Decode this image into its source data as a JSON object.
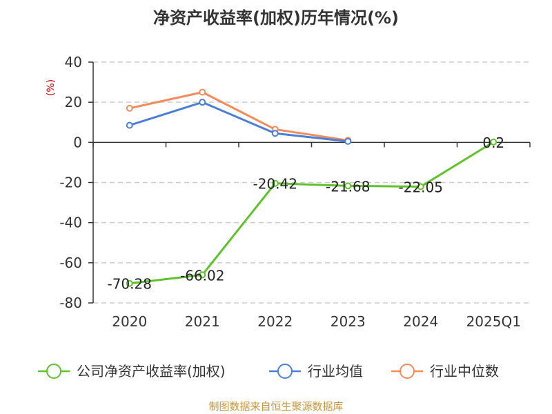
{
  "chart_data": {
    "type": "line",
    "title": "净资产收益率(加权)历年情况(%)",
    "ylabel": "(%)",
    "categories": [
      "2020",
      "2021",
      "2022",
      "2023",
      "2024",
      "2025Q1"
    ],
    "ylim": [
      -80,
      40
    ],
    "yticks": [
      40,
      20,
      0,
      -20,
      -40,
      -60,
      -80
    ],
    "grid": true,
    "legend_position": "bottom",
    "series": [
      {
        "name": "公司净资产收益率(加权)",
        "color": "#5fc22a",
        "values": [
          -70.28,
          -66.02,
          -20.42,
          -21.68,
          -22.05,
          0.2
        ],
        "labels": [
          "-70.28",
          "-66.02",
          "-20.42",
          "-21.68",
          "-22.05",
          "0.2"
        ]
      },
      {
        "name": "行业均值",
        "color": "#4a7fd8",
        "values": [
          8.5,
          20,
          4.5,
          0.5,
          null,
          null
        ]
      },
      {
        "name": "行业中位数",
        "color": "#f58a5a",
        "values": [
          17,
          25,
          6.5,
          1,
          null,
          null
        ]
      }
    ]
  },
  "source": "制图数据来自恒生聚源数据库"
}
